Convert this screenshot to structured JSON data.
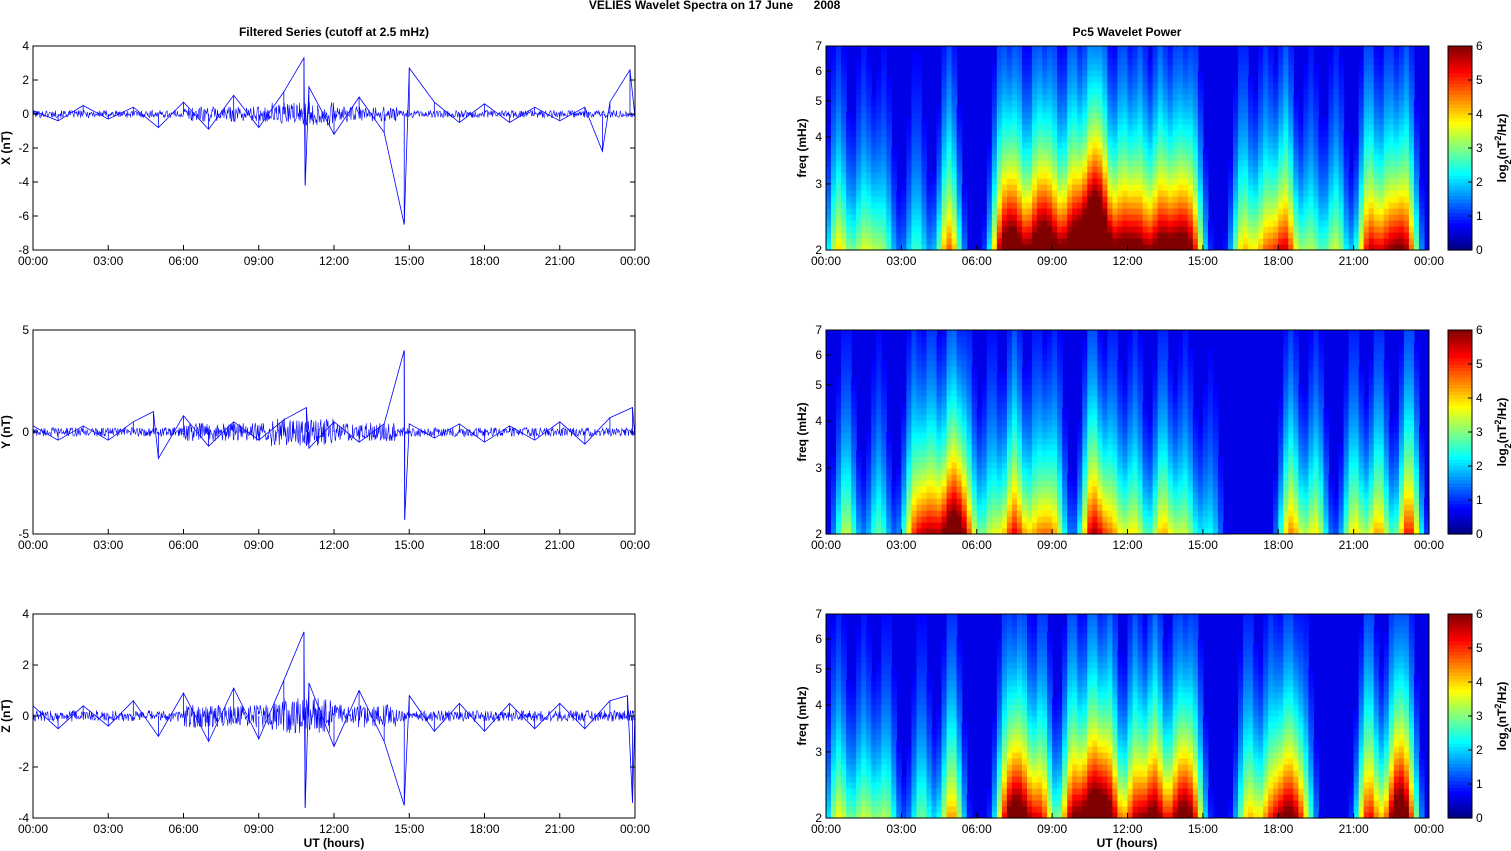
{
  "figure": {
    "suptitle_a": "VELIES Wavelet Spectra on 17 June",
    "suptitle_b": "2008",
    "left_title": "Filtered Series (cutoff at 2.5 mHz)",
    "right_title": "Pc5 Wavelet Power",
    "xlabel": "UT (hours)",
    "freq_label": "freq (mHz)",
    "colorbar_label_prefix": "log",
    "colorbar_label_sub": "2",
    "colorbar_label_mid": "(nT",
    "colorbar_label_sup": "2",
    "colorbar_label_suffix": "/Hz)"
  },
  "chart_data": [
    {
      "type": "line",
      "component": "X",
      "ylabel": "X (nT)",
      "xlim": [
        0,
        24
      ],
      "ylim": [
        -8,
        4
      ],
      "yticks": [
        "-8",
        "-6",
        "-4",
        "-2",
        "0",
        "2",
        "4"
      ],
      "xticks": [
        "00:00",
        "03:00",
        "06:00",
        "09:00",
        "12:00",
        "15:00",
        "18:00",
        "21:00",
        "00:00"
      ],
      "line_color": "#0000ff",
      "series": [
        {
          "x": [
            0,
            1,
            2,
            3,
            4,
            5,
            6,
            7,
            8,
            9,
            10,
            10.8,
            10.85,
            11,
            12,
            13,
            14,
            14.8,
            15,
            16,
            17,
            18,
            19,
            20,
            21,
            22,
            22.7,
            23,
            23.8,
            24
          ],
          "y": [
            0.2,
            -0.4,
            0.5,
            -0.3,
            0.4,
            -0.8,
            0.7,
            -0.9,
            1.1,
            -0.8,
            1.3,
            3.3,
            -4.2,
            1.6,
            -1.2,
            1.0,
            -1.1,
            -6.5,
            2.7,
            0.7,
            -0.5,
            0.6,
            -0.5,
            0.4,
            -0.4,
            0.4,
            -2.2,
            0.7,
            2.6,
            -0.2
          ]
        }
      ]
    },
    {
      "type": "line",
      "component": "Y",
      "ylabel": "Y (nT)",
      "xlim": [
        0,
        24
      ],
      "ylim": [
        -5,
        5
      ],
      "yticks": [
        "-5",
        "0",
        "5"
      ],
      "xticks": [
        "00:00",
        "03:00",
        "06:00",
        "09:00",
        "12:00",
        "15:00",
        "18:00",
        "21:00",
        "00:00"
      ],
      "line_color": "#0000ff",
      "series": [
        {
          "x": [
            0,
            1,
            2,
            3,
            4,
            4.8,
            5,
            6,
            7,
            8,
            9,
            10,
            10.9,
            11,
            12,
            13,
            14,
            14.8,
            14.82,
            15,
            16,
            17,
            18,
            19,
            20,
            21,
            22,
            23,
            23.9,
            24
          ],
          "y": [
            0.3,
            -0.4,
            0.3,
            -0.4,
            0.5,
            1.0,
            -1.3,
            0.8,
            -0.7,
            0.5,
            -0.4,
            0.6,
            1.2,
            -0.8,
            0.5,
            -0.5,
            0.4,
            4.0,
            -4.3,
            0.4,
            -0.3,
            0.4,
            -0.5,
            0.3,
            -0.4,
            0.5,
            -0.6,
            0.7,
            1.2,
            -0.3
          ]
        }
      ]
    },
    {
      "type": "line",
      "component": "Z",
      "ylabel": "Z (nT)",
      "xlim": [
        0,
        24
      ],
      "ylim": [
        -4,
        4
      ],
      "yticks": [
        "-4",
        "-2",
        "0",
        "2",
        "4"
      ],
      "xticks": [
        "00:00",
        "03:00",
        "06:00",
        "09:00",
        "12:00",
        "15:00",
        "18:00",
        "21:00",
        "00:00"
      ],
      "line_color": "#0000ff",
      "series": [
        {
          "x": [
            0,
            1,
            2,
            3,
            4,
            5,
            6,
            7,
            8,
            9,
            10,
            10.8,
            10.85,
            11,
            12,
            13,
            14,
            14.8,
            15,
            16,
            17,
            18,
            19,
            20,
            21,
            22,
            23,
            23.7,
            23.9,
            24
          ],
          "y": [
            0.4,
            -0.5,
            0.4,
            -0.4,
            0.6,
            -0.8,
            0.9,
            -1.0,
            1.1,
            -0.9,
            1.4,
            3.3,
            -3.6,
            1.3,
            -1.2,
            1.0,
            -1.0,
            -3.5,
            0.8,
            -0.6,
            0.5,
            -0.6,
            0.5,
            -0.5,
            0.5,
            -0.5,
            0.6,
            0.8,
            -3.4,
            0.2
          ]
        }
      ]
    },
    {
      "type": "heatmap",
      "component": "X",
      "ylabel": "freq (mHz)",
      "xlim": [
        0,
        24
      ],
      "ylim": [
        2,
        7
      ],
      "yscale": "log",
      "yticks": [
        "2",
        "3",
        "4",
        "5",
        "6",
        "7"
      ],
      "xticks": [
        "00:00",
        "03:00",
        "06:00",
        "09:00",
        "12:00",
        "15:00",
        "18:00",
        "21:00",
        "00:00"
      ],
      "colormap": "jet",
      "clim": [
        0,
        6
      ],
      "cbar_ticks": [
        "0",
        "1",
        "2",
        "3",
        "4",
        "5",
        "6"
      ],
      "bursts": [
        {
          "t": 0.5,
          "p": 3.6
        },
        {
          "t": 1.5,
          "p": 3.0
        },
        {
          "t": 2.3,
          "p": 2.6
        },
        {
          "t": 3.6,
          "p": 2.4
        },
        {
          "t": 4.9,
          "p": 4.5
        },
        {
          "t": 7.0,
          "p": 4.8
        },
        {
          "t": 7.6,
          "p": 5.0
        },
        {
          "t": 8.4,
          "p": 5.2
        },
        {
          "t": 9.0,
          "p": 4.9
        },
        {
          "t": 9.8,
          "p": 5.6
        },
        {
          "t": 10.5,
          "p": 6.0
        },
        {
          "t": 11.0,
          "p": 5.8
        },
        {
          "t": 11.8,
          "p": 5.0
        },
        {
          "t": 12.5,
          "p": 4.9
        },
        {
          "t": 13.3,
          "p": 5.3
        },
        {
          "t": 14.0,
          "p": 4.6
        },
        {
          "t": 14.6,
          "p": 4.4
        },
        {
          "t": 16.6,
          "p": 3.7
        },
        {
          "t": 17.5,
          "p": 3.8
        },
        {
          "t": 18.3,
          "p": 4.9
        },
        {
          "t": 19.3,
          "p": 2.9
        },
        {
          "t": 20.3,
          "p": 3.2
        },
        {
          "t": 21.6,
          "p": 4.9
        },
        {
          "t": 22.4,
          "p": 4.4
        },
        {
          "t": 23.1,
          "p": 4.9
        }
      ]
    },
    {
      "type": "heatmap",
      "component": "Y",
      "ylabel": "freq (mHz)",
      "xlim": [
        0,
        24
      ],
      "ylim": [
        2,
        7
      ],
      "yscale": "log",
      "yticks": [
        "2",
        "3",
        "4",
        "5",
        "6",
        "7"
      ],
      "xticks": [
        "00:00",
        "03:00",
        "06:00",
        "09:00",
        "12:00",
        "15:00",
        "18:00",
        "21:00",
        "00:00"
      ],
      "colormap": "jet",
      "clim": [
        0,
        6
      ],
      "cbar_ticks": [
        "0",
        "1",
        "2",
        "3",
        "4",
        "5",
        "6"
      ],
      "bursts": [
        {
          "t": 0.8,
          "p": 3.2
        },
        {
          "t": 2.1,
          "p": 2.6
        },
        {
          "t": 3.5,
          "p": 4.0
        },
        {
          "t": 4.2,
          "p": 4.4
        },
        {
          "t": 5.0,
          "p": 5.6
        },
        {
          "t": 5.6,
          "p": 3.6
        },
        {
          "t": 6.6,
          "p": 3.0
        },
        {
          "t": 7.5,
          "p": 4.8
        },
        {
          "t": 8.4,
          "p": 3.4
        },
        {
          "t": 9.1,
          "p": 3.5
        },
        {
          "t": 10.6,
          "p": 5.2
        },
        {
          "t": 11.4,
          "p": 3.6
        },
        {
          "t": 12.3,
          "p": 3.4
        },
        {
          "t": 13.4,
          "p": 3.8
        },
        {
          "t": 14.3,
          "p": 3.0
        },
        {
          "t": 15.3,
          "p": 2.0
        },
        {
          "t": 18.5,
          "p": 4.2
        },
        {
          "t": 19.5,
          "p": 3.5
        },
        {
          "t": 21.0,
          "p": 3.6
        },
        {
          "t": 22.0,
          "p": 4.0
        },
        {
          "t": 23.2,
          "p": 5.0
        }
      ]
    },
    {
      "type": "heatmap",
      "component": "Z",
      "ylabel": "freq (mHz)",
      "xlim": [
        0,
        24
      ],
      "ylim": [
        2,
        7
      ],
      "yscale": "log",
      "yticks": [
        "2",
        "3",
        "4",
        "5",
        "6",
        "7"
      ],
      "xticks": [
        "00:00",
        "03:00",
        "06:00",
        "09:00",
        "12:00",
        "15:00",
        "18:00",
        "21:00",
        "00:00"
      ],
      "colormap": "jet",
      "clim": [
        0,
        6
      ],
      "cbar_ticks": [
        "0",
        "1",
        "2",
        "3",
        "4",
        "5",
        "6"
      ],
      "bursts": [
        {
          "t": 0.5,
          "p": 3.4
        },
        {
          "t": 1.5,
          "p": 3.0
        },
        {
          "t": 2.4,
          "p": 2.9
        },
        {
          "t": 3.8,
          "p": 2.7
        },
        {
          "t": 5.0,
          "p": 4.2
        },
        {
          "t": 7.2,
          "p": 4.4
        },
        {
          "t": 7.8,
          "p": 5.0
        },
        {
          "t": 8.6,
          "p": 4.5
        },
        {
          "t": 9.8,
          "p": 5.2
        },
        {
          "t": 10.6,
          "p": 6.0
        },
        {
          "t": 11.3,
          "p": 5.4
        },
        {
          "t": 12.3,
          "p": 4.8
        },
        {
          "t": 13.1,
          "p": 5.6
        },
        {
          "t": 14.0,
          "p": 4.6
        },
        {
          "t": 14.6,
          "p": 4.4
        },
        {
          "t": 16.8,
          "p": 3.7
        },
        {
          "t": 17.7,
          "p": 3.9
        },
        {
          "t": 18.4,
          "p": 4.8
        },
        {
          "t": 19.0,
          "p": 3.0
        },
        {
          "t": 21.6,
          "p": 5.0
        },
        {
          "t": 22.6,
          "p": 4.4
        },
        {
          "t": 23.1,
          "p": 4.6
        }
      ]
    }
  ]
}
